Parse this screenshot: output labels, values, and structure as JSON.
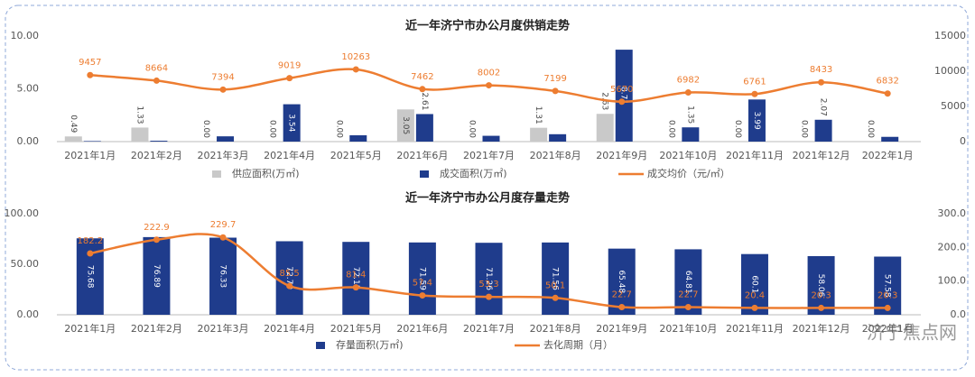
{
  "chart_data": [
    {
      "type": "bar-line",
      "title": "近一年济宁市办公月度供销走势",
      "categories": [
        "2021年1月",
        "2021年2月",
        "2021年3月",
        "2021年4月",
        "2021年5月",
        "2021年6月",
        "2021年7月",
        "2021年8月",
        "2021年9月",
        "2021年10月",
        "2021年11月",
        "2021年12月",
        "2022年1月"
      ],
      "series": [
        {
          "name": "供应面积(万㎡)",
          "type": "bar",
          "color": "#c9c9c9",
          "axis": "y",
          "values": [
            0.49,
            1.33,
            0,
            0,
            0,
            3.05,
            0,
            1.31,
            2.63,
            0,
            0,
            0,
            0
          ],
          "value_labels": [
            "0.49",
            "1.33",
            "0.00",
            "0.00",
            "0.00",
            "3.05",
            "0.00",
            "1.31",
            "2.63",
            "0.00",
            "0.00",
            "0.00",
            "0.00"
          ]
        },
        {
          "name": "成交面积(万㎡)",
          "type": "bar",
          "color": "#1f3c8c",
          "axis": "y",
          "values": [
            0.05,
            0.08,
            0.5,
            3.54,
            0.6,
            2.61,
            0.55,
            0.7,
            8.71,
            1.35,
            3.99,
            2.07,
            0.45
          ],
          "value_labels": [
            null,
            null,
            null,
            "3.54",
            null,
            "2.61",
            null,
            null,
            "8.71",
            "1.35",
            "3.99",
            "2.07",
            null
          ]
        },
        {
          "name": "成交均价（元/㎡）",
          "type": "line",
          "color": "#ed7d31",
          "axis": "y2",
          "values": [
            9457,
            8664,
            7394,
            9019,
            10263,
            7462,
            8002,
            7199,
            5670,
            6982,
            6761,
            8433,
            6832
          ]
        }
      ],
      "ylim": [
        0,
        10
      ],
      "yticks": [
        {
          "value": 0,
          "label": "0.00"
        },
        {
          "value": 5,
          "label": "5.00"
        },
        {
          "value": 10,
          "label": "10.00"
        }
      ],
      "y2lim": [
        0,
        15000
      ],
      "y2ticks": [
        0,
        5000,
        10000,
        15000
      ],
      "legend": "bottom"
    },
    {
      "type": "bar-line",
      "title": "近一年济宁市办公月度存量走势",
      "categories": [
        "2021年1月",
        "2021年2月",
        "2021年3月",
        "2021年4月",
        "2021年5月",
        "2021年6月",
        "2021年7月",
        "2021年8月",
        "2021年9月",
        "2021年10月",
        "2021年11月",
        "2021年12月",
        "2022年1月"
      ],
      "series": [
        {
          "name": "存量面积(万㎡)",
          "type": "bar",
          "color": "#1f3c8c",
          "axis": "y",
          "values": [
            75.68,
            76.89,
            76.33,
            72.79,
            72.15,
            71.59,
            71.26,
            71.56,
            65.48,
            64.81,
            60.1,
            58.06,
            57.58
          ]
        },
        {
          "name": "去化周期（月）",
          "type": "line",
          "color": "#ed7d31",
          "axis": "y2",
          "values": [
            182.2,
            222.9,
            229.7,
            85.5,
            81.4,
            57.4,
            53.3,
            50.1,
            22.7,
            22.7,
            20.4,
            20.3,
            20.3
          ]
        }
      ],
      "ylim": [
        0,
        100
      ],
      "yticks": [
        {
          "value": 0,
          "label": "0.00"
        },
        {
          "value": 50,
          "label": "50.00"
        },
        {
          "value": 100,
          "label": "100.00"
        }
      ],
      "y2lim": [
        0,
        300
      ],
      "y2ticks": [
        {
          "value": 0,
          "label": "0.0"
        },
        {
          "value": 100,
          "label": "100.0"
        },
        {
          "value": 200,
          "label": "200.0"
        },
        {
          "value": 300,
          "label": "300.0"
        }
      ],
      "legend": "bottom"
    }
  ],
  "watermark": "济宁焦点网"
}
